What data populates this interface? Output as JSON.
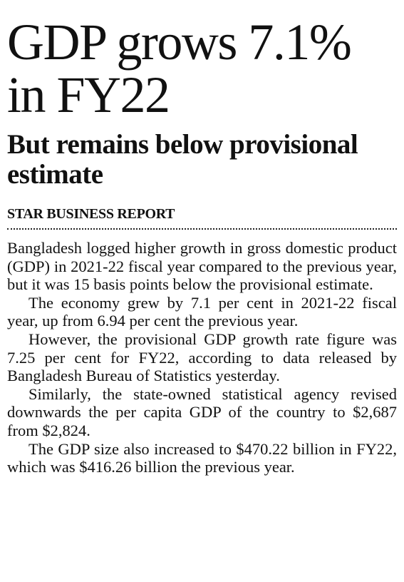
{
  "headline": "GDP grows 7.1% in FY22",
  "subheadline": "But remains below provisional estimate",
  "byline": "STAR BUSINESS REPORT",
  "paragraphs": [
    "Bangladesh logged higher growth in gross domestic product (GDP) in 2021-22 fiscal year compared to the previous year, but it was 15 basis points below the provisional estimate.",
    "The economy grew by 7.1 per cent in 2021-22 fiscal year, up from 6.94 per cent the previous year.",
    "However, the provisional GDP growth rate figure was 7.25 per cent for FY22, according to data released by Bangladesh Bureau of Statistics yesterday.",
    "Similarly, the state-owned statistical agency revised downwards the per capita GDP of the country to $2,687 from $2,824.",
    "The GDP size also increased to $470.22 billion in FY22, which was $416.26 billion the previous year."
  ]
}
